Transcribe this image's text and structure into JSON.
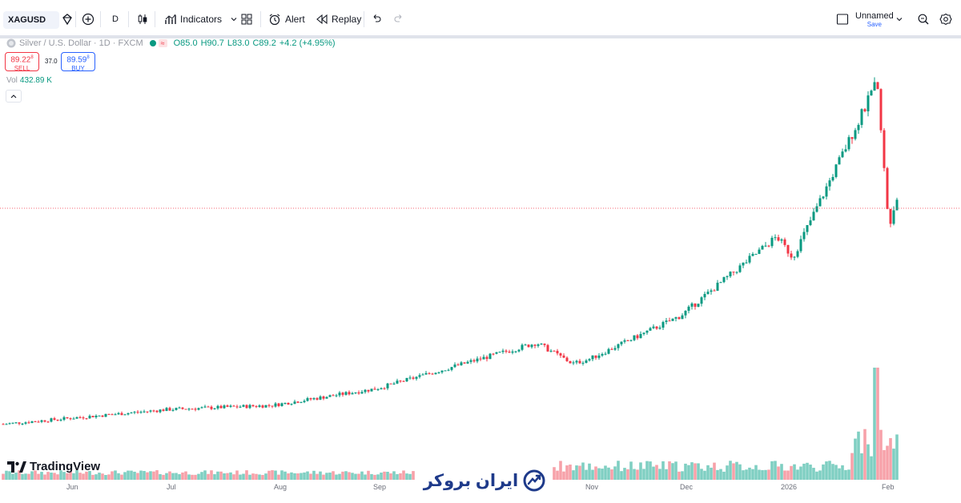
{
  "toolbar": {
    "symbol": "XAGUSD",
    "interval": "D",
    "indicators_label": "Indicators",
    "alert_label": "Alert",
    "replay_label": "Replay",
    "layout_name": "Unnamed",
    "save_label": "Save"
  },
  "legend": {
    "title": "Silver / U.S. Dollar · 1D · FXCM",
    "open": "O85.0",
    "high": "H90.7",
    "low": "L83.0",
    "close": "C89.2",
    "change": "+4.2 (+4.95%)"
  },
  "trade": {
    "sell_price": "89.22",
    "sell_price_sup": "8",
    "sell_label": "SELL",
    "spread": "37.0",
    "buy_price": "89.59",
    "buy_price_sup": "8",
    "buy_label": "BUY"
  },
  "volume": {
    "label": "Vol",
    "value": "432.89 K"
  },
  "x_axis": [
    "Jun",
    "Jul",
    "Aug",
    "Sep",
    "Nov",
    "Dec",
    "2026",
    "Feb"
  ],
  "branding": {
    "tradingview": "TradingView",
    "watermark": "ایران بروکر"
  },
  "colors": {
    "up": "#089981",
    "down": "#f23645",
    "vol_up": "#7fcfc2",
    "vol_down": "#f7a1a9",
    "accent": "#2962ff"
  },
  "chart_data": {
    "type": "candlestick",
    "symbol": "XAGUSD",
    "interval": "1D",
    "range_start": "late May 2025",
    "range_end": "early Feb 2026",
    "close_path": [
      [
        "Jun",
        33.0
      ],
      [
        "Jul",
        36.5
      ],
      [
        "Aug",
        37.5
      ],
      [
        "Sep",
        41.5
      ],
      [
        "mid-Oct",
        52.5
      ],
      [
        "late-Oct",
        47.5
      ],
      [
        "Nov",
        48.5
      ],
      [
        "Dec",
        59.0
      ],
      [
        "late-Dec",
        78.0
      ],
      [
        "2026",
        73.0
      ],
      [
        "late-Jan",
        115.0
      ],
      [
        "early-Feb",
        80.0
      ],
      [
        "Feb",
        89.2
      ]
    ],
    "last_close": 89.2,
    "volume_last": "432.89 K"
  }
}
